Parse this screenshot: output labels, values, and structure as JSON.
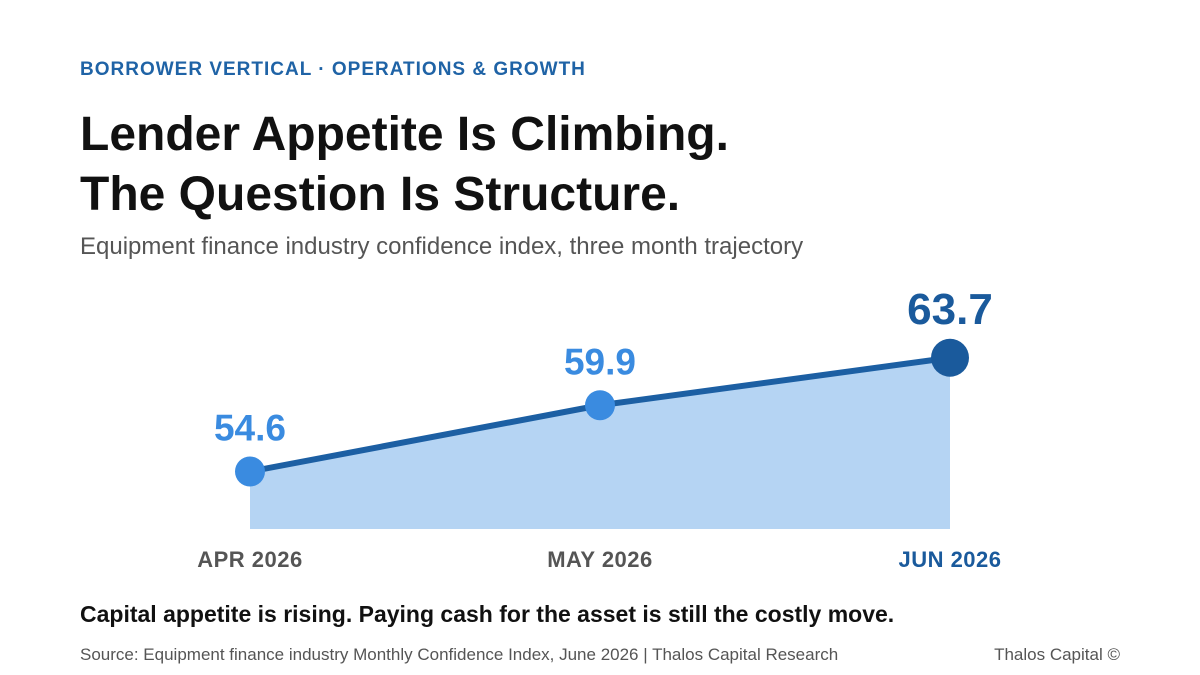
{
  "chart_data": {
    "type": "area",
    "kicker": "BORROWER VERTICAL · OPERATIONS & GROWTH",
    "title": [
      "Lender Appetite Is Climbing.",
      "The Question Is Structure."
    ],
    "subtitle": "Equipment finance industry confidence index, three month trajectory",
    "categories": [
      "APR 2026",
      "MAY 2026",
      "JUN 2026"
    ],
    "values": [
      54.6,
      59.9,
      63.7
    ],
    "ylim": [
      50,
      70
    ],
    "line_color": "#1c5fa3",
    "area_color": "#b5d4f3",
    "marker_colors": [
      "#3a8be0",
      "#3a8be0",
      "#1a5a9c"
    ],
    "takeaway": "Capital appetite is rising. Paying cash for the asset is still the costly move.",
    "source": "Source: Equipment finance industry Monthly Confidence Index, June 2026 | Thalos Capital Research",
    "brand": "Thalos Capital ©"
  }
}
